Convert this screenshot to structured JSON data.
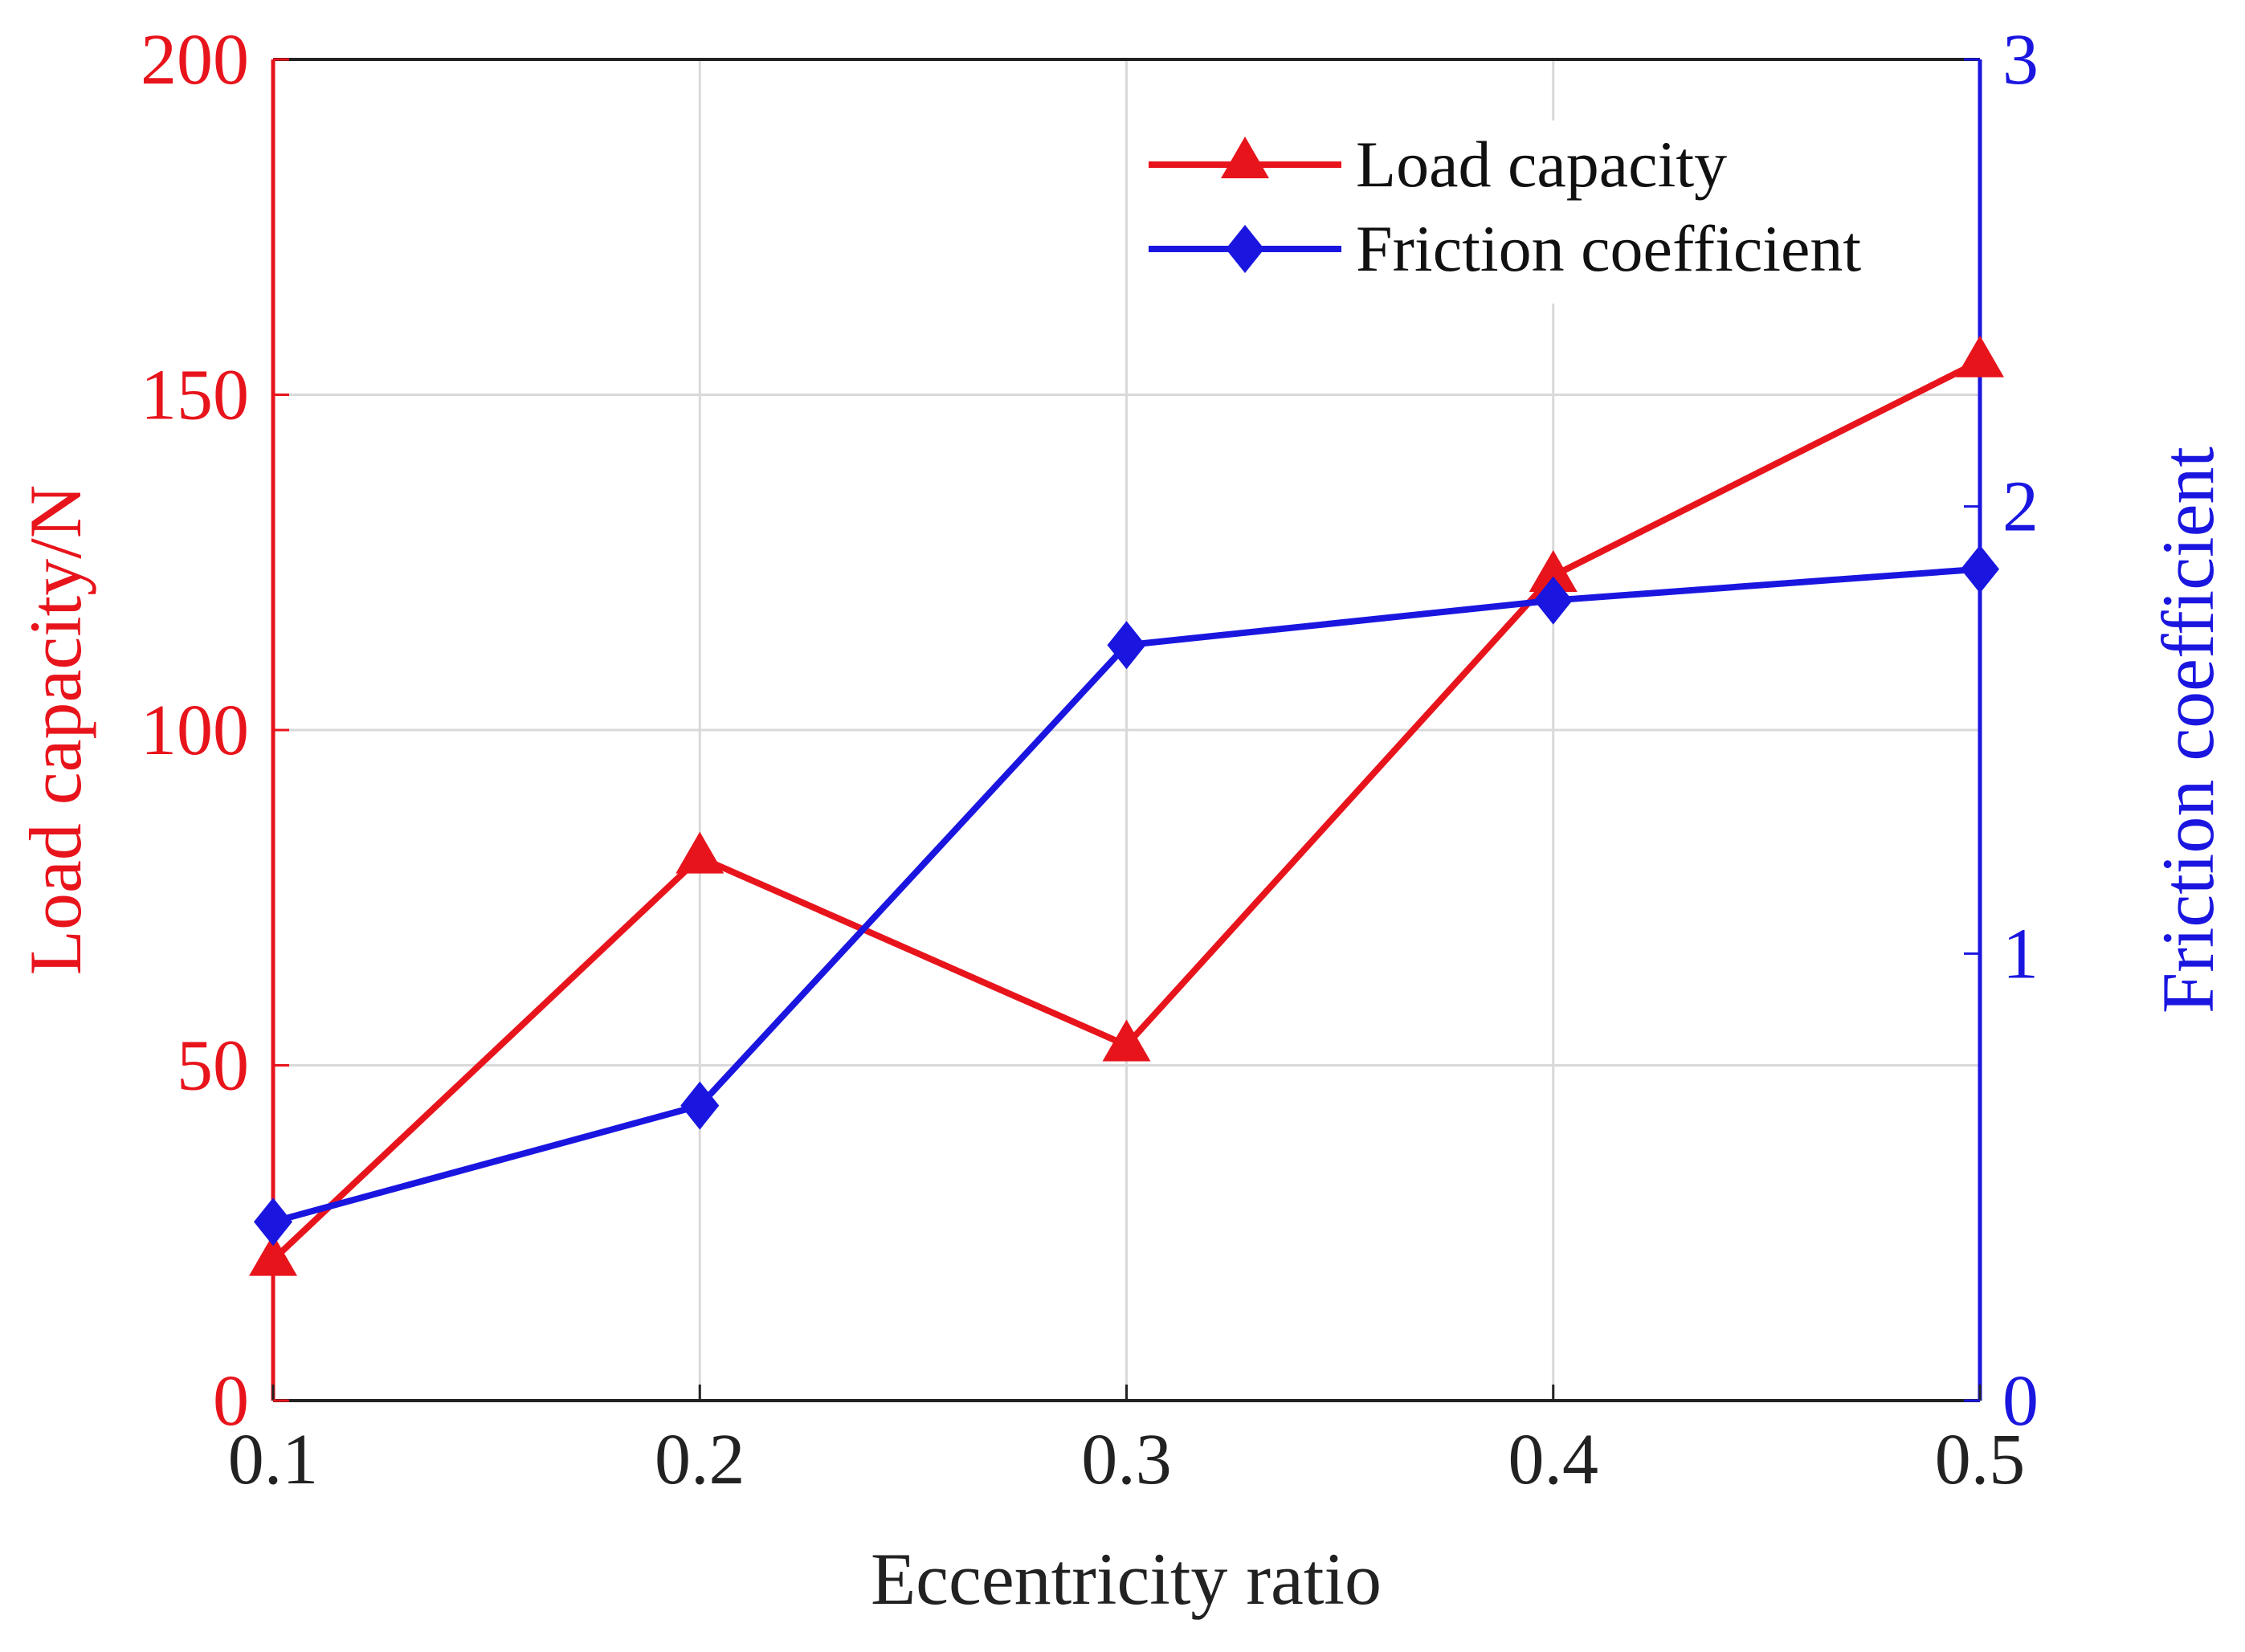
{
  "chart_data": {
    "type": "line",
    "x": [
      0.1,
      0.2,
      0.3,
      0.4,
      0.5
    ],
    "xlabel": "Eccentricity ratio",
    "xlim": [
      0.1,
      0.5
    ],
    "xticks": [
      "0.1",
      "0.2",
      "0.3",
      "0.4",
      "0.5"
    ],
    "y_left": {
      "label": "Load capacity/N",
      "lim": [
        0,
        200
      ],
      "ticks": [
        "0",
        "50",
        "100",
        "150",
        "200"
      ],
      "color": "#e8141c"
    },
    "y_right": {
      "label": "Friction coefficient",
      "lim": [
        0,
        3
      ],
      "ticks": [
        "0",
        "1",
        "2",
        "3"
      ],
      "color": "#1a16e0"
    },
    "grid": true,
    "legend_position": "top-right",
    "series": [
      {
        "name": "Load capacity",
        "axis": "left",
        "marker": "triangle",
        "color": "#e8141c",
        "values": [
          21,
          81,
          53,
          123,
          155
        ]
      },
      {
        "name": "Friction coefficient",
        "axis": "right",
        "marker": "diamond",
        "color": "#1a16e0",
        "values": [
          0.4,
          0.66,
          1.69,
          1.79,
          1.86
        ]
      }
    ]
  }
}
